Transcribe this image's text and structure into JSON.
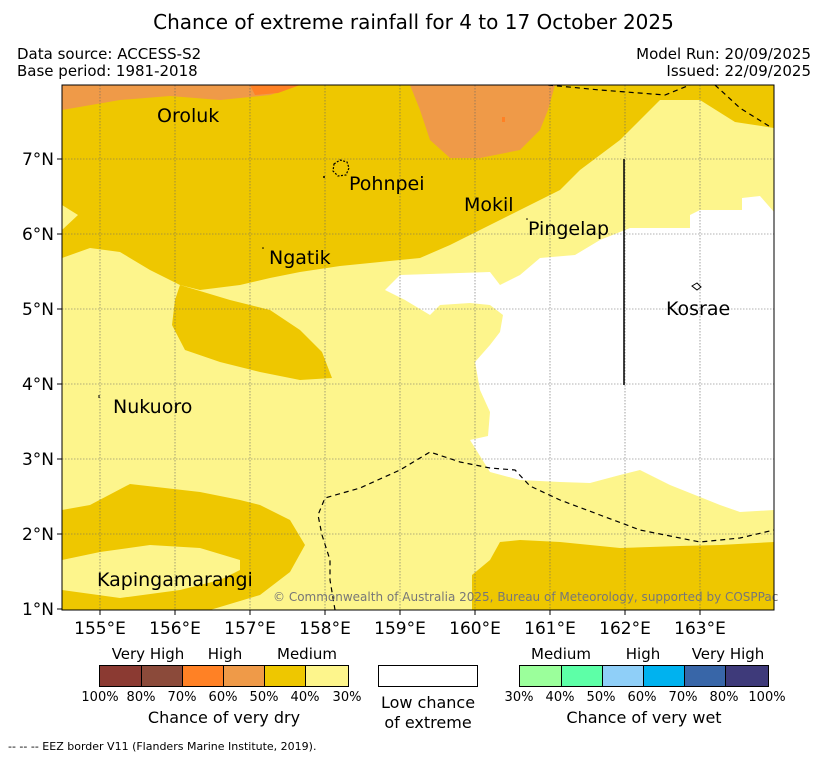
{
  "title": "Chance of extreme rainfall for 4 to 17 October 2025",
  "data_source": "Data source: ACCESS-S2",
  "base_period": "Base period: 1981-2018",
  "model_run": "Model Run: 20/09/2025",
  "issued": "Issued: 22/09/2025",
  "colors": {
    "very_dry_100": "#8b3a32",
    "very_dry_80": "#8b4a3a",
    "high_dry_70": "#ff8125",
    "high_dry_60": "#ef9a48",
    "medium_dry_50": "#eec700",
    "medium_dry_40": "#fdf58c",
    "low": "#ffffff",
    "medium_wet_30": "#9bff9b",
    "medium_wet_40": "#5dffa7",
    "high_wet_50": "#8fcff8",
    "high_wet_60": "#00b2ef",
    "very_high_wet_70": "#3866a8",
    "very_high_wet_80": "#3e3a7a"
  },
  "map": {
    "lon_ticks": [
      "155°E",
      "156°E",
      "157°E",
      "158°E",
      "159°E",
      "160°E",
      "161°E",
      "162°E",
      "163°E"
    ],
    "lat_ticks": [
      "1°N",
      "2°N",
      "3°N",
      "4°N",
      "5°N",
      "6°N",
      "7°N"
    ],
    "places": [
      "Oroluk",
      "Pohnpei",
      "Mokil",
      "Pingelap",
      "Ngatik",
      "Kosrae",
      "Nukuoro",
      "Kapingamarangi"
    ],
    "copyright": "© Commonwealth of Australia 2025, Bureau of Meteorology, supported by COSPPac"
  },
  "legend": {
    "dry": {
      "classes": [
        "Very High",
        "High",
        "Medium"
      ],
      "pcts": [
        "100%",
        "80%",
        "70%",
        "60%",
        "50%",
        "40%",
        "30%"
      ],
      "title": "Chance of very dry"
    },
    "low": {
      "line1": "Low chance",
      "line2": "of extreme"
    },
    "wet": {
      "classes": [
        "Medium",
        "High",
        "Very High"
      ],
      "pcts": [
        "30%",
        "40%",
        "50%",
        "60%",
        "70%",
        "80%",
        "100%"
      ],
      "title": "Chance of very wet"
    }
  },
  "footer": "--  --  -- EEZ border V11 (Flanders Marine Institute, 2019)."
}
